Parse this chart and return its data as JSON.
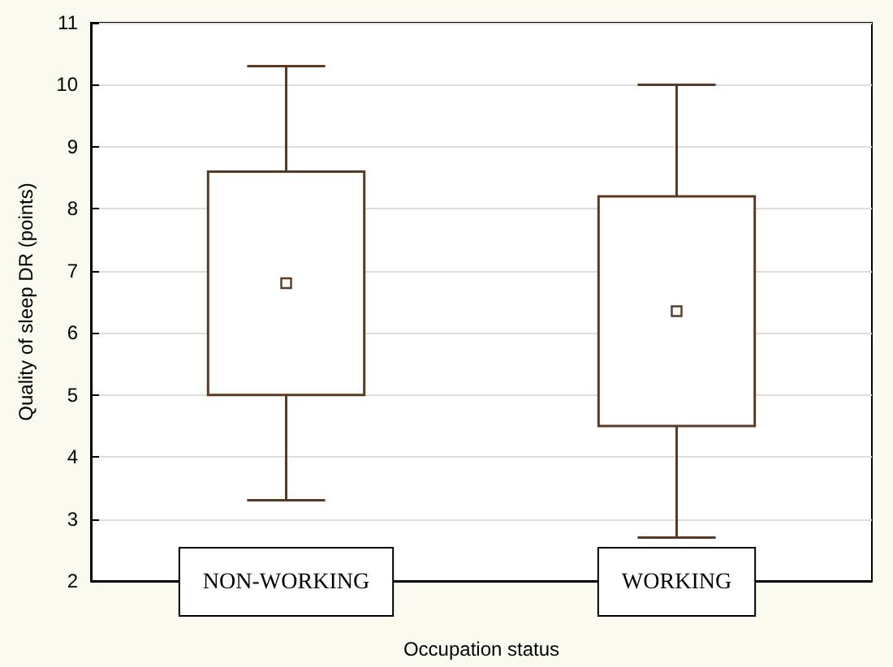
{
  "chart_data": {
    "type": "box",
    "xlabel": "Occupation status",
    "ylabel": "Quality of sleep DR (points)",
    "categories": [
      "NON-WORKING",
      "WORKING"
    ],
    "color": "#5c3a21",
    "boxes": [
      {
        "low": 3.3,
        "q1": 5.0,
        "median": 6.8,
        "q3": 8.6,
        "high": 10.3
      },
      {
        "low": 2.7,
        "q1": 4.5,
        "median": 6.35,
        "q3": 8.2,
        "high": 10.0
      }
    ],
    "marker": "square",
    "ylim": [
      2,
      11
    ],
    "yticks": [
      2,
      3,
      4,
      5,
      6,
      7,
      8,
      9,
      10,
      11
    ],
    "grid": "y"
  }
}
